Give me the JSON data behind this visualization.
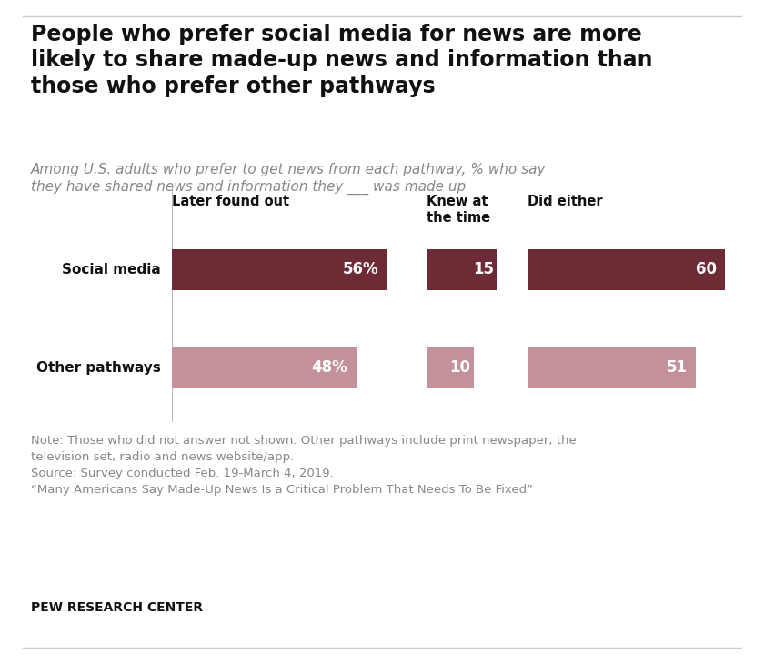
{
  "title_line1": "People who prefer social media for news are more",
  "title_line2": "likely to share made-up news and information than",
  "title_line3": "those who prefer other pathways",
  "subtitle1": "Among U.S. adults who prefer to get news from each pathway, % who say",
  "subtitle2": "they have shared news and information they ___ was made up",
  "group_labels": [
    "Later found out",
    "Knew at\nthe time",
    "Did either"
  ],
  "cat_labels": [
    "Social media",
    "Other pathways"
  ],
  "values_social": [
    56,
    15,
    60
  ],
  "values_other": [
    48,
    10,
    51
  ],
  "bar_labels_social": [
    "56%",
    "15",
    "60"
  ],
  "bar_labels_other": [
    "48%",
    "10",
    "51"
  ],
  "color_social": "#6d2b35",
  "color_other": "#c4909a",
  "separator_color": "#aaaaaa",
  "note1": "Note: Those who did not answer not shown. Other pathways include print newspaper, the",
  "note2": "television set, radio and news website/app.",
  "note3": "Source: Survey conducted Feb. 19-March 4, 2019.",
  "note4": "“Many Americans Say Made-Up News Is a Critical Problem That Needs To Be Fixed”",
  "pew": "PEW RESEARCH CENTER",
  "border_color": "#cccccc",
  "bg_color": "#ffffff",
  "text_dark": "#111111",
  "text_gray": "#888888",
  "title_fontsize": 17,
  "subtitle_fontsize": 11,
  "note_fontsize": 9.5,
  "pew_fontsize": 10,
  "group_label_fontsize": 10.5,
  "cat_label_fontsize": 11,
  "bar_label_fontsize": 12
}
